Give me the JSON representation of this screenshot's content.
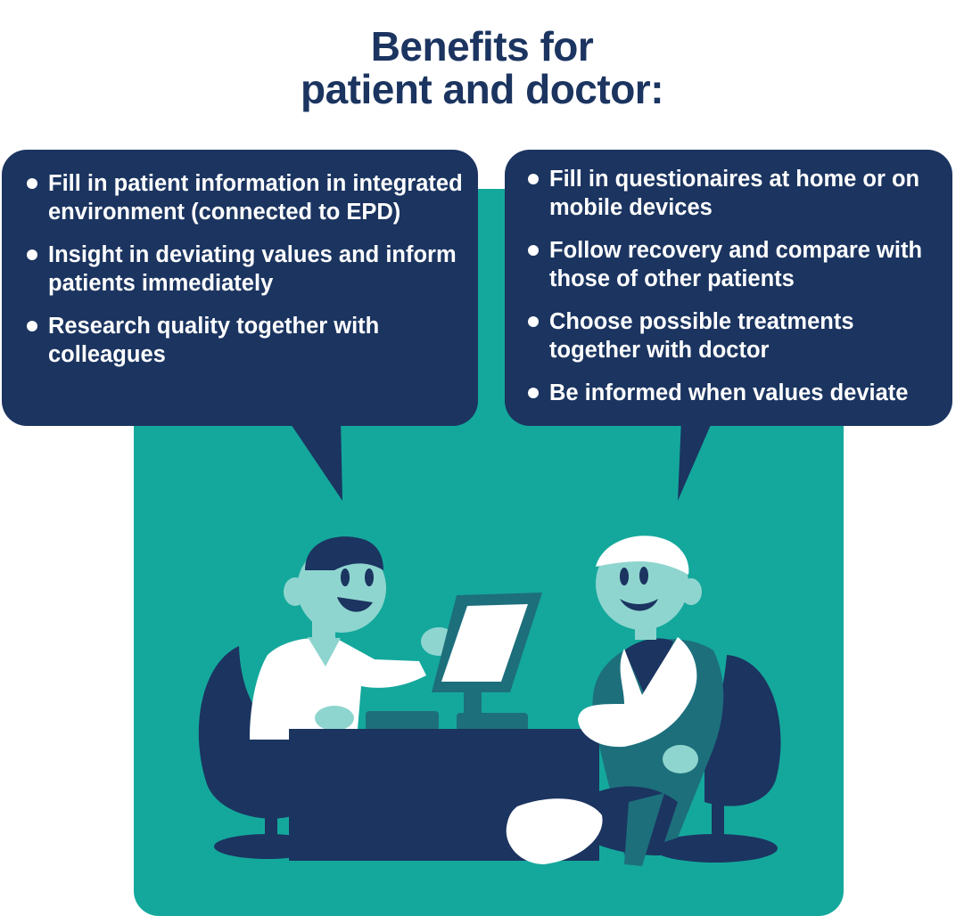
{
  "title": {
    "line1": "Benefits for",
    "line2": "patient and doctor:"
  },
  "doctor_bubble": {
    "items": [
      "Fill in patient information in integrated environment (connected to EPD)",
      "Insight in deviating values and inform patients immediately",
      "Research quality together with colleagues"
    ]
  },
  "patient_bubble": {
    "items": [
      "Fill in questionaires at home or on mobile devices",
      "Follow recovery and compare with those of other patients",
      "Choose possible treatments together with doctor",
      "Be informed when values deviate"
    ]
  },
  "colors": {
    "navy": "#1b3460",
    "teal": "#14a89c",
    "dark_teal": "#1d6f7c",
    "skin": "#8fd5cf",
    "white": "#ffffff"
  }
}
